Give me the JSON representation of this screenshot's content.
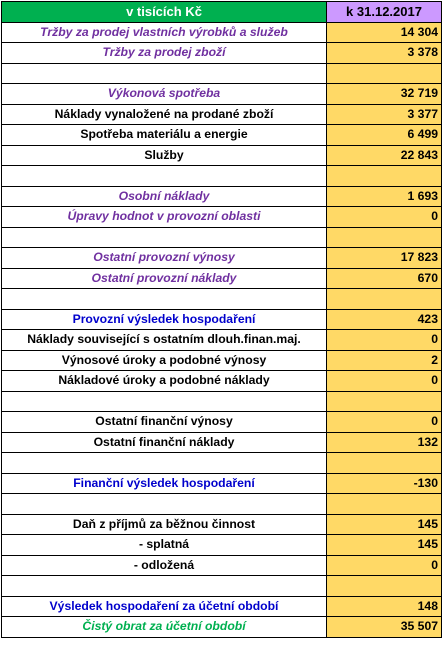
{
  "header": {
    "left": "v tisících Kč",
    "right": "k 31.12.2017"
  },
  "rows": [
    {
      "label": "Tržby za prodej vlastních výrobků a služeb",
      "value": "14 304",
      "style": "purple"
    },
    {
      "label": "Tržby za prodej zboží",
      "value": "3 378",
      "style": "purple"
    },
    {
      "label": "",
      "value": "",
      "style": "blank"
    },
    {
      "label": "Výkonová spotřeba",
      "value": "32 719",
      "style": "purple"
    },
    {
      "label": "Náklady vynaložené na prodané zboží",
      "value": "3 377",
      "style": "normal"
    },
    {
      "label": "Spotřeba materiálu a energie",
      "value": "6 499",
      "style": "normal"
    },
    {
      "label": "Služby",
      "value": "22 843",
      "style": "normal"
    },
    {
      "label": "",
      "value": "",
      "style": "blank"
    },
    {
      "label": "Osobní náklady",
      "value": "1 693",
      "style": "purple"
    },
    {
      "label": "Úpravy hodnot  v provozní oblasti",
      "value": "0",
      "style": "purple"
    },
    {
      "label": "",
      "value": "",
      "style": "blank"
    },
    {
      "label": "Ostatní provozní výnosy",
      "value": "17 823",
      "style": "purple"
    },
    {
      "label": "Ostatní provozní náklady",
      "value": "670",
      "style": "purple"
    },
    {
      "label": "",
      "value": "",
      "style": "blank"
    },
    {
      "label": "Provozní výsledek hospodaření",
      "value": "423",
      "style": "blue"
    },
    {
      "label": "Náklady související s ostatním  dlouh.finan.maj.",
      "value": "0",
      "style": "normal"
    },
    {
      "label": "Výnosové úroky a podobné výnosy",
      "value": "2",
      "style": "normal"
    },
    {
      "label": "Nákladové úroky a podobné náklady",
      "value": "0",
      "style": "normal"
    },
    {
      "label": "",
      "value": "",
      "style": "blank"
    },
    {
      "label": "Ostatní finanční výnosy",
      "value": "0",
      "style": "normal"
    },
    {
      "label": "Ostatní finanční náklady",
      "value": "132",
      "style": "normal"
    },
    {
      "label": "",
      "value": "",
      "style": "blank"
    },
    {
      "label": "Finanční výsledek hospodaření",
      "value": "-130",
      "style": "blue"
    },
    {
      "label": "",
      "value": "",
      "style": "blank"
    },
    {
      "label": "Daň z příjmů za běžnou činnost",
      "value": "145",
      "style": "normal"
    },
    {
      "label": "- splatná",
      "value": "145",
      "style": "normal"
    },
    {
      "label": "- odložená",
      "value": "0",
      "style": "normal"
    },
    {
      "label": "",
      "value": "",
      "style": "blank"
    },
    {
      "label": "Výsledek hospodaření za účetní období",
      "value": "148",
      "style": "blue"
    },
    {
      "label": "Čistý obrat  za  účetní  období",
      "value": "35 507",
      "style": "green"
    }
  ]
}
